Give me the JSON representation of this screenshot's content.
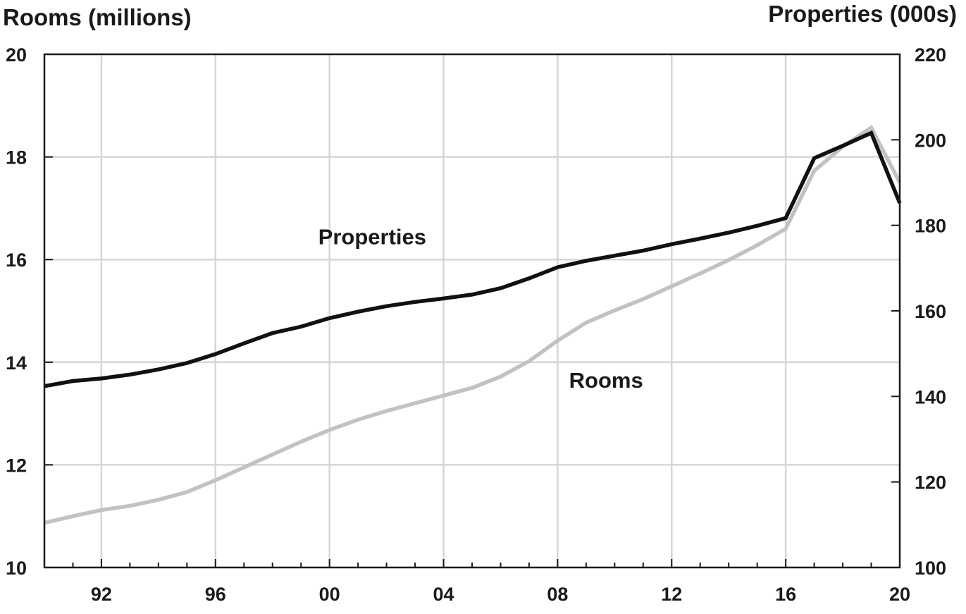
{
  "chart_data": {
    "type": "line",
    "left_axis_title": "Rooms (millions)",
    "right_axis_title": "Properties (000s)",
    "x": [
      1990,
      1991,
      1992,
      1993,
      1994,
      1995,
      1996,
      1997,
      1998,
      1999,
      2000,
      2001,
      2002,
      2003,
      2004,
      2005,
      2006,
      2007,
      2008,
      2009,
      2010,
      2011,
      2012,
      2013,
      2014,
      2015,
      2016,
      2017,
      2018,
      2019,
      2020
    ],
    "xlim": [
      1990,
      2020
    ],
    "x_ticks": [
      1992,
      1996,
      2000,
      2004,
      2008,
      2012,
      2016,
      2020
    ],
    "x_tick_labels": [
      "92",
      "96",
      "00",
      "04",
      "08",
      "12",
      "16",
      "20"
    ],
    "ylim_left": [
      10,
      20
    ],
    "y_ticks_left": [
      "10",
      "12",
      "14",
      "16",
      "18",
      "20"
    ],
    "ylim_right": [
      100,
      220
    ],
    "y_ticks_right": [
      "100",
      "120",
      "140",
      "160",
      "180",
      "200",
      "220"
    ],
    "grid": true,
    "series": [
      {
        "name": "Properties",
        "axis": "right",
        "color": "#111111",
        "values": [
          142.4,
          143.6,
          144.2,
          145.1,
          146.3,
          147.8,
          149.9,
          152.4,
          154.8,
          156.3,
          158.3,
          159.8,
          161.1,
          162.1,
          162.9,
          163.8,
          165.3,
          167.6,
          170.2,
          171.7,
          172.9,
          174.1,
          175.6,
          176.9,
          178.3,
          179.9,
          181.7,
          195.7,
          198.6,
          201.6,
          185.2
        ],
        "label_at": [
          2001.5,
          16.3
        ]
      },
      {
        "name": "Rooms",
        "axis": "left",
        "color": "#c2c2c2",
        "values": [
          10.87,
          11.0,
          11.12,
          11.2,
          11.32,
          11.47,
          11.7,
          11.95,
          12.2,
          12.45,
          12.68,
          12.88,
          13.05,
          13.2,
          13.35,
          13.5,
          13.72,
          14.02,
          14.42,
          14.77,
          15.01,
          15.23,
          15.48,
          15.73,
          15.99,
          16.28,
          16.6,
          17.73,
          18.2,
          18.57,
          17.5
        ],
        "label_at": [
          2009.7,
          13.5
        ]
      }
    ]
  }
}
